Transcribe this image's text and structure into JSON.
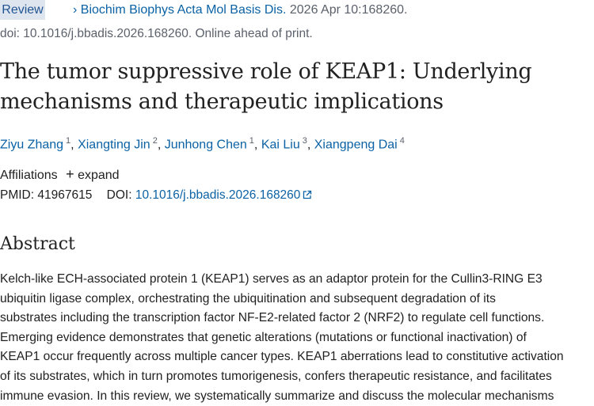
{
  "article_type": "Review",
  "citation": {
    "journal": "Biochim Biophys Acta Mol Basis Dis.",
    "date": " 2026 Apr 10:168260.",
    "doi_line": "doi: 10.1016/j.bbadis.2026.168260. Online ahead of print."
  },
  "title": "The tumor suppressive role of KEAP1: Underlying mechanisms and therapeutic implications",
  "authors": [
    {
      "name": "Ziyu Zhang",
      "aff": "1"
    },
    {
      "name": "Xiangting Jin",
      "aff": "2"
    },
    {
      "name": "Junhong Chen",
      "aff": "1"
    },
    {
      "name": "Kai Liu",
      "aff": "3"
    },
    {
      "name": "Xiangpeng Dai",
      "aff": "4"
    }
  ],
  "affiliations": {
    "label": "Affiliations",
    "expand": "expand"
  },
  "ids": {
    "pmid_label": "PMID:",
    "pmid": "41967615",
    "doi_label": "DOI:",
    "doi": "10.1016/j.bbadis.2026.168260"
  },
  "abstract": {
    "heading": "Abstract",
    "lines": [
      "Kelch-like ECH-associated protein 1 (KEAP1) serves as an adaptor protein for the Cullin3-RING E3",
      "ubiquitin ligase complex, orchestrating the ubiquitination and subsequent degradation of its",
      "substrates including the transcription factor NF-E2-related factor 2 (NRF2) to regulate cell functions.",
      "Emerging evidence demonstrates that genetic alterations (mutations or functional inactivation) of",
      "KEAP1 occur frequently across multiple cancer types. KEAP1 aberrations lead to constitutive activation",
      "of its substrates, which in turn promotes tumorigenesis, confers therapeutic resistance, and facilitates",
      "immune evasion. In this review, we systematically summarize and discuss the molecular mechanisms"
    ]
  }
}
